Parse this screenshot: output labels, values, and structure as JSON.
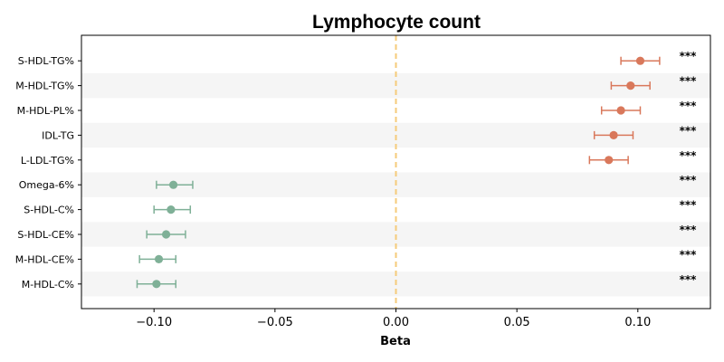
{
  "chart_data": {
    "type": "forest",
    "title": "Lymphocyte count",
    "xlabel": "Beta",
    "ylabel": "",
    "xlim": [
      -0.13,
      0.13
    ],
    "xticks": [
      -0.1,
      -0.05,
      0.0,
      0.05,
      0.1
    ],
    "xtick_labels": [
      "−0.10",
      "−0.05",
      "0.00",
      "0.05",
      "0.10"
    ],
    "reference_line": {
      "x": 0.0,
      "style": "dashed",
      "color": "#F5CB7A"
    },
    "alternating_row_shading": true,
    "colors": {
      "positive": "#D9785B",
      "negative": "#7FB097",
      "shade": "#F5F5F5"
    },
    "rows": [
      {
        "label": "S-HDL-TG%",
        "beta": 0.101,
        "ci_low": 0.093,
        "ci_high": 0.109,
        "sig": "***"
      },
      {
        "label": "M-HDL-TG%",
        "beta": 0.097,
        "ci_low": 0.089,
        "ci_high": 0.105,
        "sig": "***"
      },
      {
        "label": "M-HDL-PL%",
        "beta": 0.093,
        "ci_low": 0.085,
        "ci_high": 0.101,
        "sig": "***"
      },
      {
        "label": "IDL-TG",
        "beta": 0.09,
        "ci_low": 0.082,
        "ci_high": 0.098,
        "sig": "***"
      },
      {
        "label": "L-LDL-TG%",
        "beta": 0.088,
        "ci_low": 0.08,
        "ci_high": 0.096,
        "sig": "***"
      },
      {
        "label": "Omega-6%",
        "beta": -0.092,
        "ci_low": -0.099,
        "ci_high": -0.084,
        "sig": "***"
      },
      {
        "label": "S-HDL-C%",
        "beta": -0.093,
        "ci_low": -0.1,
        "ci_high": -0.085,
        "sig": "***"
      },
      {
        "label": "S-HDL-CE%",
        "beta": -0.095,
        "ci_low": -0.103,
        "ci_high": -0.087,
        "sig": "***"
      },
      {
        "label": "M-HDL-CE%",
        "beta": -0.098,
        "ci_low": -0.106,
        "ci_high": -0.091,
        "sig": "***"
      },
      {
        "label": "M-HDL-C%",
        "beta": -0.099,
        "ci_low": -0.107,
        "ci_high": -0.091,
        "sig": "***"
      }
    ]
  }
}
